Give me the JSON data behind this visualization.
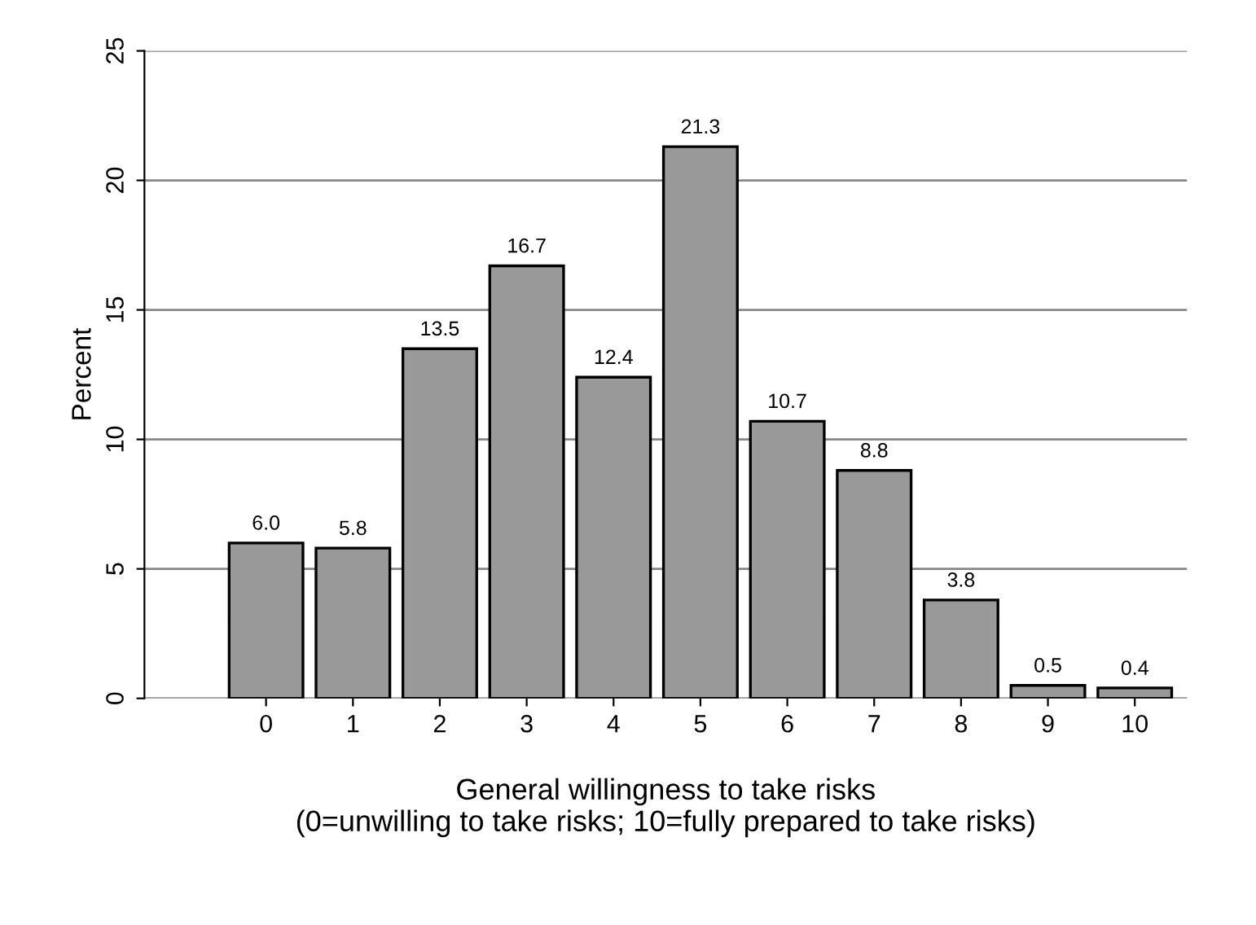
{
  "chart_data": {
    "type": "bar",
    "xlabel": "General willingness to take risks\n(0=unwilling to take risks; 10=fully prepared to take risks)",
    "ylabel": "Percent",
    "categories": [
      "0",
      "1",
      "2",
      "3",
      "4",
      "5",
      "6",
      "7",
      "8",
      "9",
      "10"
    ],
    "values": [
      6.0,
      5.8,
      13.5,
      16.7,
      12.4,
      21.3,
      10.7,
      8.8,
      3.8,
      0.5,
      0.4
    ],
    "value_labels": [
      "6.0",
      "5.8",
      "13.5",
      "16.7",
      "12.4",
      "21.3",
      "10.7",
      "8.8",
      "3.8",
      "0.5",
      "0.4"
    ],
    "color": "#999999",
    "ylim": [
      0,
      25
    ],
    "yticks": [
      0,
      5,
      10,
      15,
      20,
      25
    ],
    "grid": "y",
    "legend": false
  }
}
